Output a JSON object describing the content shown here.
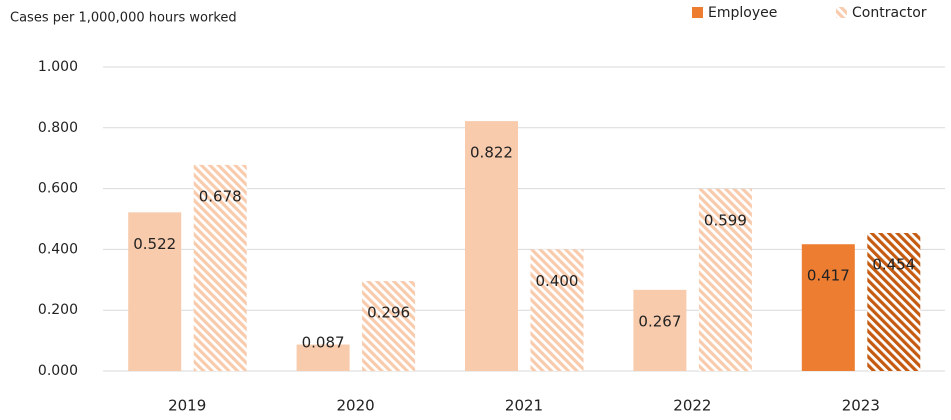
{
  "chart_data": {
    "type": "bar",
    "y_axis_label": "Cases per 1,000,000 hours worked",
    "categories": [
      "2019",
      "2020",
      "2021",
      "2022",
      "2023"
    ],
    "series": [
      {
        "name": "Employee",
        "color": "#ed7d31",
        "colors": [
          "#f8cbad",
          "#f8cbad",
          "#f8cbad",
          "#f8cbad",
          "#ed7d31"
        ],
        "hatch": false,
        "values": [
          0.522,
          0.087,
          0.822,
          0.267,
          0.417
        ],
        "value_labels": [
          "0.522",
          "0.087",
          "0.822",
          "0.267",
          "0.417"
        ]
      },
      {
        "name": "Contractor",
        "color": "#f8cbad",
        "colors": [
          "#f8cbad",
          "#f8cbad",
          "#f8cbad",
          "#f8cbad",
          "#c55a11"
        ],
        "hatch": true,
        "values": [
          0.678,
          0.296,
          0.4,
          0.599,
          0.454
        ],
        "value_labels": [
          "0.678",
          "0.296",
          "0.400",
          "0.599",
          "0.454"
        ]
      }
    ],
    "ylim": [
      0,
      1
    ],
    "yticks": [
      {
        "value": 0,
        "label": "0.000"
      },
      {
        "value": 0.2,
        "label": "0.200"
      },
      {
        "value": 0.4,
        "label": "0.400"
      },
      {
        "value": 0.6,
        "label": "0.600"
      },
      {
        "value": 0.8,
        "label": "0.800"
      },
      {
        "value": 1,
        "label": "1.000"
      }
    ],
    "grid": true,
    "legend": "top-right"
  }
}
